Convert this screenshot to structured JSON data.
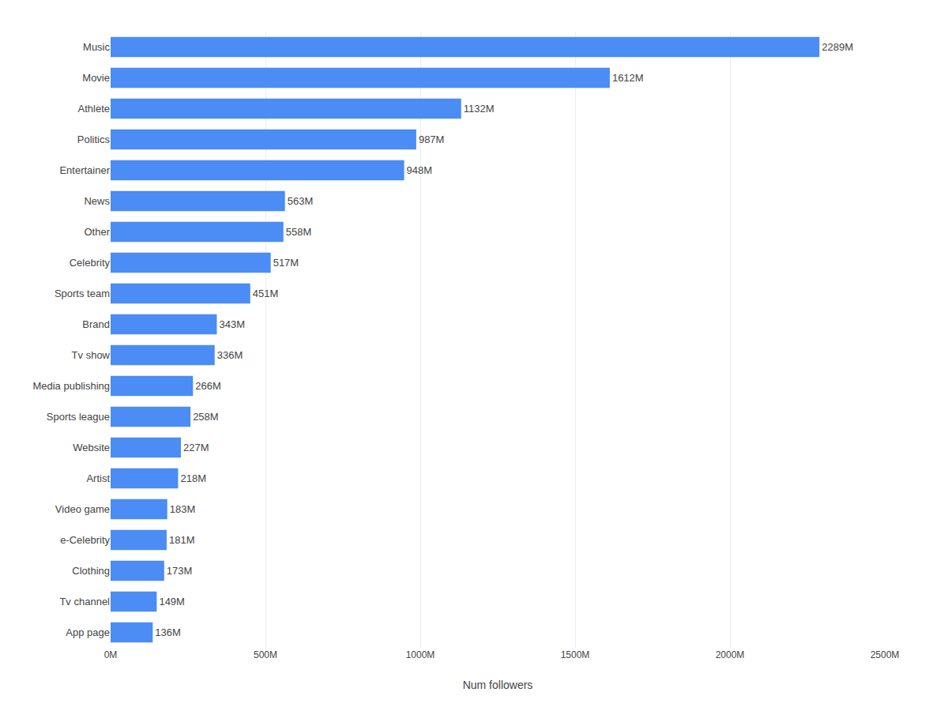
{
  "chart_data": {
    "type": "bar",
    "orientation": "horizontal",
    "categories": [
      "App page",
      "Tv channel",
      "Clothing",
      "e-Celebrity",
      "Video game",
      "Artist",
      "Website",
      "Sports league",
      "Media publishing",
      "Tv show",
      "Brand",
      "Sports team",
      "Celebrity",
      "Other",
      "News",
      "Entertainer",
      "Politics",
      "Athlete",
      "Movie",
      "Music"
    ],
    "values": [
      136,
      149,
      173,
      181,
      183,
      218,
      227,
      258,
      266,
      336,
      343,
      451,
      517,
      558,
      563,
      948,
      987,
      1132,
      1612,
      2289
    ],
    "value_labels": [
      "136M",
      "149M",
      "173M",
      "181M",
      "183M",
      "218M",
      "227M",
      "258M",
      "266M",
      "336M",
      "343M",
      "451M",
      "517M",
      "558M",
      "563M",
      "948M",
      "987M",
      "1132M",
      "1612M",
      "2289M"
    ],
    "data_labels": true,
    "color": "#4B8CF5",
    "xlabel": "Num followers",
    "xlim": [
      0,
      2500
    ],
    "xticks": [
      {
        "value": 0,
        "label": "0M"
      },
      {
        "value": 500,
        "label": "500M"
      },
      {
        "value": 1000,
        "label": "1000M"
      },
      {
        "value": 1500,
        "label": "1500M"
      },
      {
        "value": 2000,
        "label": "2000M"
      },
      {
        "value": 2500,
        "label": "2500M"
      }
    ],
    "grid": true
  }
}
